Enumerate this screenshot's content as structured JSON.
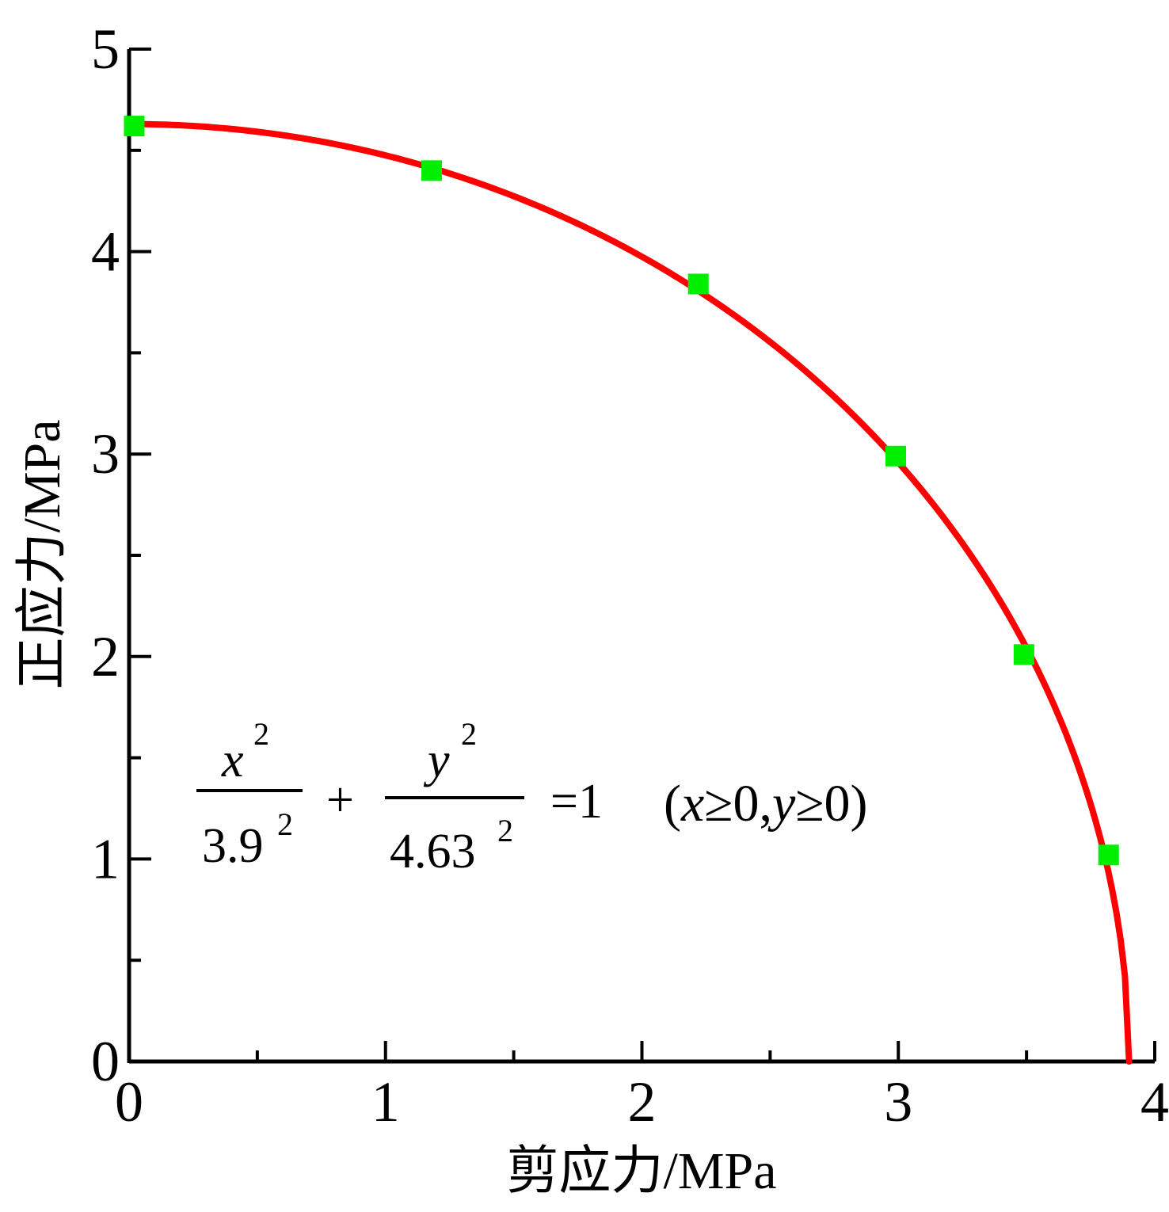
{
  "chart_data": {
    "type": "scatter",
    "xlabel": "剪应力/MPa",
    "ylabel": "正应力/MPa",
    "xlim": [
      0,
      4
    ],
    "ylim": [
      0,
      5
    ],
    "x_ticks": [
      0,
      1,
      2,
      3,
      4
    ],
    "y_ticks": [
      0,
      1,
      2,
      3,
      4,
      5
    ],
    "x_tick_labels": [
      "0",
      "1",
      "2",
      "3",
      "4"
    ],
    "y_tick_labels": [
      "0",
      "1",
      "2",
      "3",
      "4",
      "5"
    ],
    "grid": false,
    "series": [
      {
        "kind": "scatter",
        "marker": "square",
        "color": "#00ee00",
        "points": [
          {
            "x": 0.02,
            "y": 4.62
          },
          {
            "x": 1.18,
            "y": 4.4
          },
          {
            "x": 2.22,
            "y": 3.84
          },
          {
            "x": 2.99,
            "y": 2.99
          },
          {
            "x": 3.49,
            "y": 2.01
          },
          {
            "x": 3.82,
            "y": 1.02
          }
        ]
      },
      {
        "kind": "line",
        "color": "#ff0000",
        "a": 3.9,
        "b": 4.63
      }
    ],
    "annotation": {
      "numerator1": "x",
      "numerator1_exp": "2",
      "denominator1": "3.9",
      "denominator1_exp": "2",
      "plus": "+",
      "numerator2": "y",
      "numerator2_exp": "2",
      "denominator2": "4.63",
      "denominator2_exp": "2",
      "equals": "=1",
      "condition_open": "(",
      "condition_x": "x",
      "condition_mid": "≥0,",
      "condition_y": "y",
      "condition_end": "≥0)"
    }
  }
}
